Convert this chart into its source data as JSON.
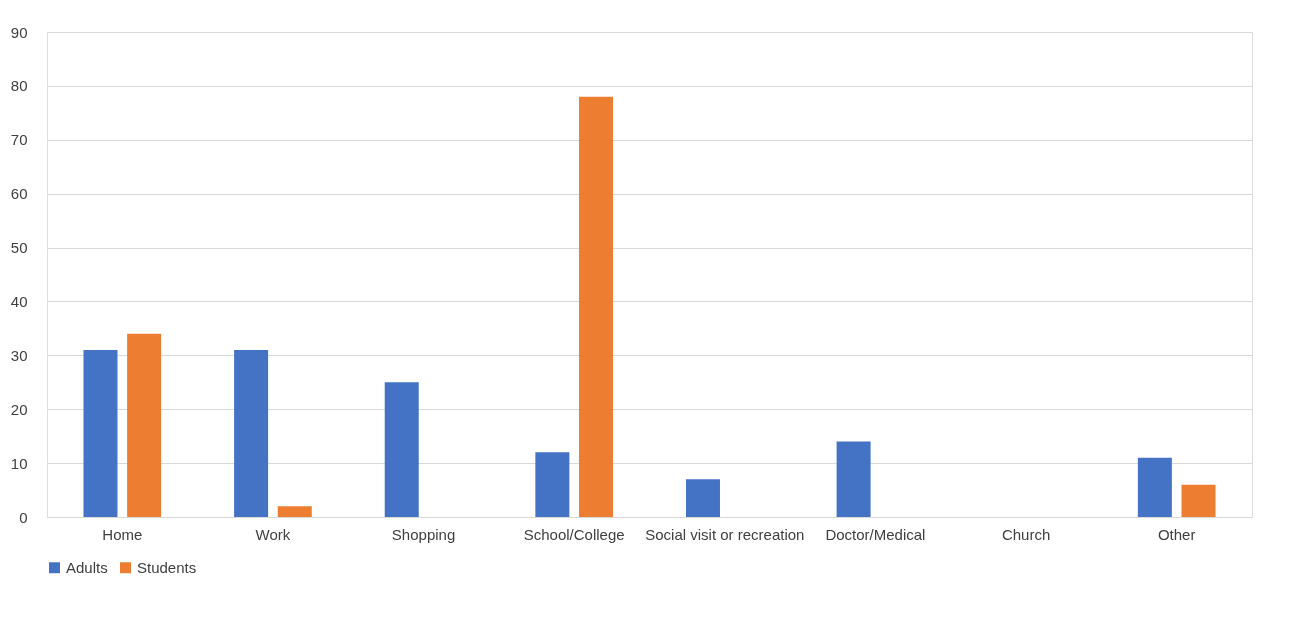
{
  "chart_data": {
    "type": "bar",
    "categories": [
      "Home",
      "Work",
      "Shopping",
      "School/College",
      "Social visit or recreation",
      "Doctor/Medical",
      "Church",
      "Other"
    ],
    "series": [
      {
        "name": "Adults",
        "color": "#4472c4",
        "values": [
          31,
          31,
          25,
          12,
          7,
          14,
          0,
          11
        ]
      },
      {
        "name": "Students",
        "color": "#ed7d31",
        "values": [
          34,
          2,
          0,
          78,
          0,
          0,
          0,
          6
        ]
      }
    ],
    "ylim": [
      0,
      90
    ],
    "yticks": [
      0,
      10,
      20,
      30,
      40,
      50,
      60,
      70,
      80,
      90
    ],
    "grid": "y",
    "legend": "bottom"
  }
}
